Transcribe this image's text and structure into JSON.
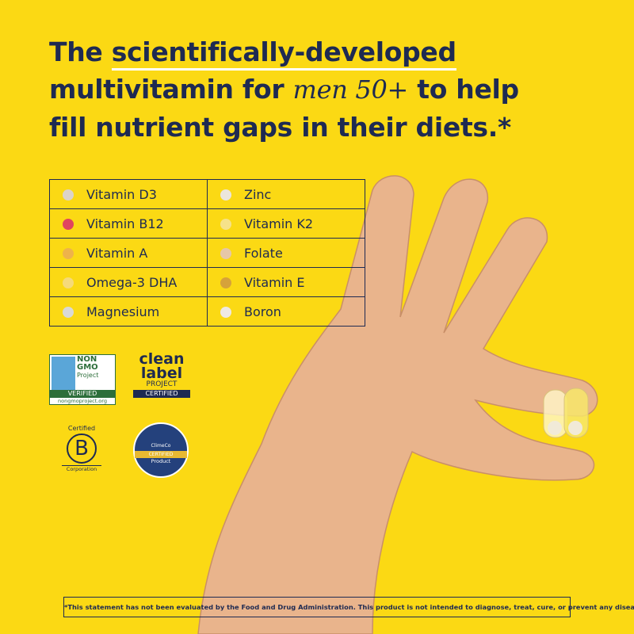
{
  "headline": {
    "start": "The",
    "underlined": "scientifically-developed",
    "line2_start": "multivitamin for",
    "emphasis": "men 50+",
    "line2_end": "to help",
    "line3": "fill nutrient gaps in their diets.*"
  },
  "nutrients": [
    [
      {
        "name": "Vitamin D3",
        "color": "#dcd3c8"
      },
      {
        "name": "Zinc",
        "color": "#ece6dc"
      }
    ],
    [
      {
        "name": "Vitamin B12",
        "color": "#e0455f"
      },
      {
        "name": "Vitamin K2",
        "color": "#f6e28a"
      }
    ],
    [
      {
        "name": "Vitamin A",
        "color": "#eeb34a"
      },
      {
        "name": "Folate",
        "color": "#e6c7a8"
      }
    ],
    [
      {
        "name": "Omega-3 DHA",
        "color": "#f5da7a"
      },
      {
        "name": "Vitamin E",
        "color": "#d6a23a"
      }
    ],
    [
      {
        "name": "Magnesium",
        "color": "#d9d9d6"
      },
      {
        "name": "Boron",
        "color": "#efe9e2"
      }
    ]
  ],
  "badges": {
    "non_gmo": {
      "line1": "NON",
      "line2": "GMO",
      "line3": "Project",
      "verified": "VERIFIED",
      "url": "nongmoproject.org"
    },
    "clean_label": {
      "line1": "clean",
      "line2": "label",
      "line3": "PROJECT",
      "certified": "CERTIFIED"
    },
    "b_corp": {
      "top": "Certified",
      "letter": "B",
      "bottom": "Corporation"
    },
    "climeco": {
      "name": "ClimeCo",
      "certified": "CERTIFIED",
      "product": "Product"
    }
  },
  "disclaimer": "*This statement has not been evaluated by the Food and Drug Administration. This product is not intended to diagnose, treat, cure, or prevent any disease."
}
